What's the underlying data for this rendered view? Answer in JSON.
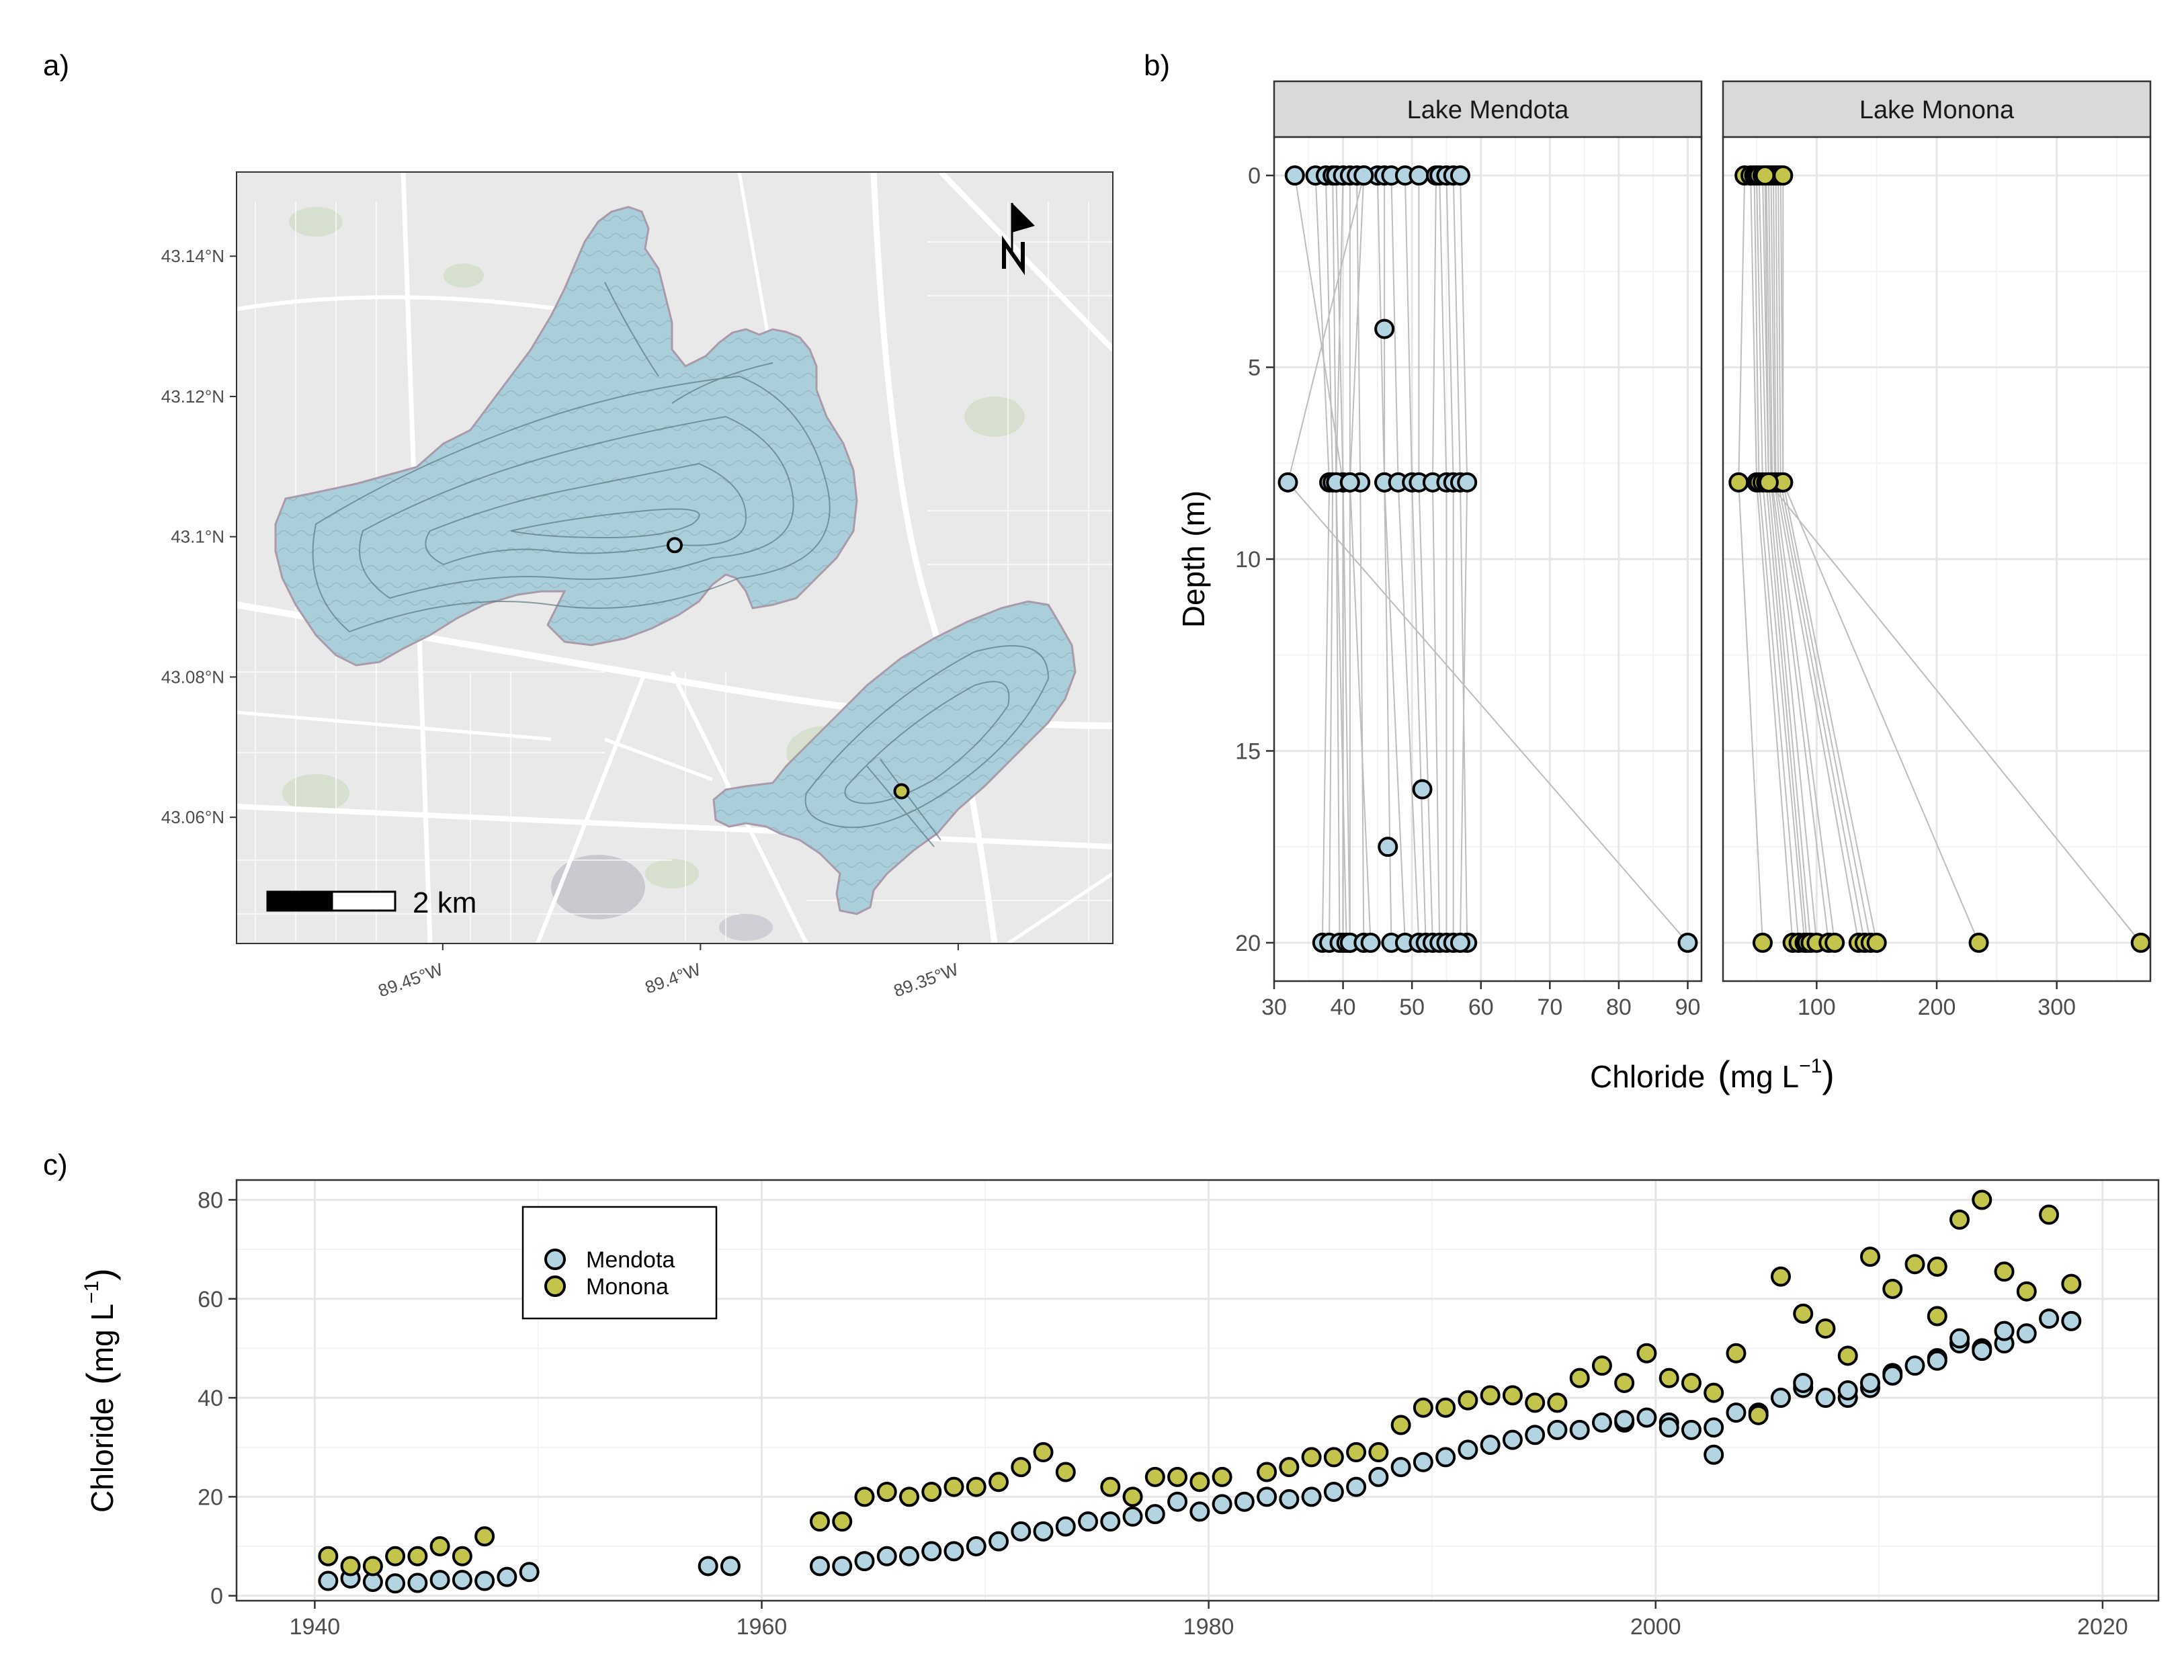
{
  "panel_letters": {
    "a": "a)",
    "b": "b)",
    "c": "c)"
  },
  "colors": {
    "mendota": "#b4d4e1",
    "monona": "#c3c44c",
    "lake": "#aacfdb",
    "land": "#e9e9e9",
    "road": "#ffffff",
    "park": "#d7e0cf",
    "grid_major": "#e6e6e6",
    "grid_minor": "#f3f3f3",
    "line": "#bdbdbd"
  },
  "map": {
    "lat_ticks": [
      "43.14°N",
      "43.12°N",
      "43.1°N",
      "43.08°N",
      "43.06°N"
    ],
    "lat_values": [
      43.14,
      43.12,
      43.1,
      43.08,
      43.06
    ],
    "lon_ticks": [
      "89.45°W",
      "89.4°W",
      "89.35°W"
    ],
    "lon_values": [
      -89.45,
      -89.4,
      -89.35
    ],
    "extent": {
      "lon": [
        -89.49,
        -89.32
      ],
      "lat": [
        43.042,
        43.152
      ]
    },
    "scalebar_label": "2 km",
    "north_label": "N",
    "north_arrow_icon": "north-arrow-icon",
    "sample_sites": [
      {
        "lake": "Mendota",
        "lon": -89.405,
        "lat": 43.0988
      },
      {
        "lake": "Monona",
        "lon": -89.361,
        "lat": 43.0637
      }
    ]
  },
  "depth_profiles": {
    "ylabel": "Depth (m)",
    "xlabel_main": "Chloride",
    "xlabel_unit": "mg L",
    "xlabel_sup": "−1",
    "depth_ticks": [
      0,
      5,
      10,
      15,
      20
    ],
    "depth_range": [
      -1,
      21
    ],
    "panels": [
      {
        "name": "Lake Mendota",
        "xlim": [
          30,
          92
        ],
        "xticks": [
          30,
          40,
          50,
          60,
          70,
          80,
          90
        ],
        "color_key": "mendota",
        "profiles": [
          [
            33,
            40,
            40
          ],
          [
            36,
            38,
            37
          ],
          [
            37.5,
            38.5,
            38
          ],
          [
            38.5,
            39,
            39.5
          ],
          [
            39,
            40,
            41
          ],
          [
            40,
            39,
            40.5
          ],
          [
            41,
            41,
            41
          ],
          [
            42,
            42.5,
            43
          ],
          [
            43,
            41,
            44
          ],
          [
            45,
            46,
            47
          ],
          [
            46,
            46,
            49
          ],
          [
            47,
            48,
            51
          ],
          [
            49,
            50,
            52
          ],
          [
            51,
            51,
            53
          ],
          [
            53.5,
            53,
            54
          ],
          [
            54,
            55,
            55
          ],
          [
            55,
            56,
            56
          ],
          [
            56,
            57,
            58
          ],
          [
            57,
            58,
            57
          ],
          [
            43,
            32,
            90
          ]
        ],
        "extra_points": [
          {
            "x": 46,
            "depth": 4
          },
          {
            "x": 51.5,
            "depth": 16
          },
          {
            "x": 46.5,
            "depth": 17.5
          }
        ]
      },
      {
        "name": "Lake Monona",
        "xlim": [
          22,
          378
        ],
        "xticks": [
          100,
          200,
          300
        ],
        "color_key": "monona",
        "profiles": [
          [
            40,
            35,
            55
          ],
          [
            45,
            50,
            80
          ],
          [
            48,
            52,
            85
          ],
          [
            50,
            55,
            90
          ],
          [
            52,
            58,
            92
          ],
          [
            55,
            60,
            95
          ],
          [
            58,
            62,
            100
          ],
          [
            60,
            63,
            110
          ],
          [
            62,
            65,
            115
          ],
          [
            64,
            66,
            135
          ],
          [
            66,
            68,
            140
          ],
          [
            68,
            70,
            145
          ],
          [
            70,
            72,
            150
          ],
          [
            72,
            72,
            235
          ],
          [
            57,
            60,
            370
          ]
        ],
        "extra_points": []
      }
    ]
  },
  "chart_data": {
    "type": "scatter",
    "ylabel_main": "Chloride",
    "ylabel_unit": "mg L",
    "ylabel_sup": "−1",
    "xlim": [
      1936.5,
      2022.5
    ],
    "ylim": [
      -1,
      84
    ],
    "xticks": [
      1940,
      1960,
      1980,
      2000,
      2020
    ],
    "yticks": [
      0,
      20,
      40,
      60,
      80
    ],
    "legend_position": "top-left",
    "series": [
      {
        "name": "Mendota",
        "color_key": "mendota",
        "points": [
          [
            1940.6,
            3
          ],
          [
            1941.6,
            3.5
          ],
          [
            1942.6,
            2.8
          ],
          [
            1943.6,
            2.5
          ],
          [
            1944.6,
            2.6
          ],
          [
            1945.6,
            3.2
          ],
          [
            1946.6,
            3.2
          ],
          [
            1947.6,
            3
          ],
          [
            1948.6,
            3.8
          ],
          [
            1949.6,
            4.8
          ],
          [
            1957.6,
            6
          ],
          [
            1958.6,
            6
          ],
          [
            1962.6,
            6
          ],
          [
            1963.6,
            6
          ],
          [
            1964.6,
            7
          ],
          [
            1965.6,
            8
          ],
          [
            1966.6,
            8
          ],
          [
            1967.6,
            9
          ],
          [
            1968.6,
            9
          ],
          [
            1969.6,
            10
          ],
          [
            1970.6,
            11
          ],
          [
            1971.6,
            13
          ],
          [
            1972.6,
            13
          ],
          [
            1973.6,
            14
          ],
          [
            1974.6,
            15
          ],
          [
            1975.6,
            15
          ],
          [
            1976.6,
            16
          ],
          [
            1977.6,
            16.5
          ],
          [
            1978.6,
            19
          ],
          [
            1979.6,
            17
          ],
          [
            1980.6,
            18.5
          ],
          [
            1981.6,
            19
          ],
          [
            1982.6,
            20
          ],
          [
            1983.6,
            19.5
          ],
          [
            1984.6,
            20
          ],
          [
            1985.6,
            21
          ],
          [
            1986.6,
            22
          ],
          [
            1987.6,
            24
          ],
          [
            1988.6,
            26
          ],
          [
            1989.6,
            27
          ],
          [
            1990.6,
            28
          ],
          [
            1991.6,
            29.5
          ],
          [
            1992.6,
            30.5
          ],
          [
            1993.6,
            31.5
          ],
          [
            1994.6,
            32.5
          ],
          [
            1995.6,
            33.5
          ],
          [
            1996.6,
            33.5
          ],
          [
            1997.6,
            35
          ],
          [
            1998.6,
            35
          ],
          [
            1999.6,
            36
          ],
          [
            2000.6,
            35
          ],
          [
            2001.6,
            33.5
          ],
          [
            2002.6,
            28.5
          ],
          [
            2002.6,
            34
          ],
          [
            2003.6,
            37
          ],
          [
            2004.6,
            37
          ],
          [
            2005.6,
            40
          ],
          [
            2006.6,
            42
          ],
          [
            2007.6,
            40
          ],
          [
            2008.6,
            40
          ],
          [
            2009.6,
            42
          ],
          [
            2010.6,
            45
          ],
          [
            2011.6,
            46.5
          ],
          [
            2012.6,
            48
          ],
          [
            2013.6,
            51
          ],
          [
            2014.6,
            50
          ],
          [
            2015.6,
            51
          ],
          [
            2016.6,
            53
          ],
          [
            2017.6,
            56
          ],
          [
            2018.6,
            55.5
          ],
          [
            1998.6,
            35.5
          ],
          [
            2000.6,
            34
          ],
          [
            2006.6,
            43
          ],
          [
            2008.6,
            41.5
          ],
          [
            2009.6,
            43
          ],
          [
            2013.6,
            52
          ],
          [
            2014.6,
            49.5
          ],
          [
            2015.6,
            53.5
          ],
          [
            2012.6,
            47.5
          ],
          [
            2010.6,
            44.5
          ]
        ]
      },
      {
        "name": "Monona",
        "color_key": "monona",
        "points": [
          [
            1940.6,
            8
          ],
          [
            1941.6,
            6
          ],
          [
            1942.6,
            6
          ],
          [
            1943.6,
            8
          ],
          [
            1944.6,
            8
          ],
          [
            1945.6,
            10
          ],
          [
            1946.6,
            8
          ],
          [
            1947.6,
            12
          ],
          [
            1962.6,
            15
          ],
          [
            1963.6,
            15
          ],
          [
            1964.6,
            20
          ],
          [
            1965.6,
            21
          ],
          [
            1966.6,
            20
          ],
          [
            1967.6,
            21
          ],
          [
            1968.6,
            22
          ],
          [
            1969.6,
            22
          ],
          [
            1970.6,
            23
          ],
          [
            1971.6,
            26
          ],
          [
            1972.6,
            29
          ],
          [
            1973.6,
            25
          ],
          [
            1975.6,
            22
          ],
          [
            1976.6,
            20
          ],
          [
            1977.6,
            24
          ],
          [
            1978.6,
            24
          ],
          [
            1979.6,
            23
          ],
          [
            1980.6,
            24
          ],
          [
            1982.6,
            25
          ],
          [
            1983.6,
            26
          ],
          [
            1984.6,
            28
          ],
          [
            1985.6,
            28
          ],
          [
            1986.6,
            29
          ],
          [
            1987.6,
            29
          ],
          [
            1988.6,
            34.5
          ],
          [
            1989.6,
            38
          ],
          [
            1990.6,
            38
          ],
          [
            1991.6,
            39.5
          ],
          [
            1992.6,
            40.5
          ],
          [
            1993.6,
            40.5
          ],
          [
            1994.6,
            39
          ],
          [
            1995.6,
            39
          ],
          [
            1996.6,
            44
          ],
          [
            1997.6,
            46.5
          ],
          [
            1998.6,
            43
          ],
          [
            1999.6,
            49
          ],
          [
            2000.6,
            44
          ],
          [
            2001.6,
            43
          ],
          [
            2002.6,
            41
          ],
          [
            2003.6,
            49
          ],
          [
            2004.6,
            36.5
          ],
          [
            2005.6,
            64.5
          ],
          [
            2006.6,
            57
          ],
          [
            2007.6,
            54
          ],
          [
            2008.6,
            48.5
          ],
          [
            2009.6,
            68.5
          ],
          [
            2010.6,
            62
          ],
          [
            2011.6,
            67
          ],
          [
            2012.6,
            66.5
          ],
          [
            2012.6,
            56.5
          ],
          [
            2013.6,
            76
          ],
          [
            2014.6,
            80
          ],
          [
            2015.6,
            65.5
          ],
          [
            2016.6,
            61.5
          ],
          [
            2017.6,
            77
          ],
          [
            2018.6,
            63
          ]
        ]
      }
    ]
  }
}
